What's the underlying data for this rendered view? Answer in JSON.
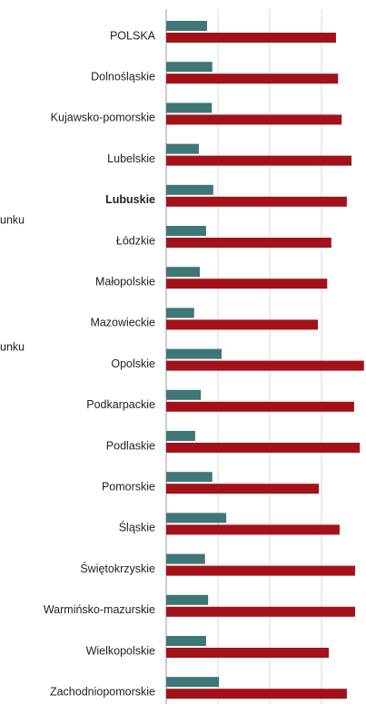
{
  "chart_data": {
    "type": "bar",
    "orientation": "horizontal",
    "categories": [
      "POLSKA",
      "Dolnośląskie",
      "Kujawsko-pomorskie",
      "Lubelskie",
      "Lubuskie",
      "Łódzkie",
      "Małopolskie",
      "Mazowieckie",
      "Opolskie",
      "Podkarpackie",
      "Podlaskie",
      "Pomorskie",
      "Śląskie",
      "Świętokrzyskie",
      "Warmińsko-mazurskie",
      "Wielkopolskie",
      "Zachodniopomorskie"
    ],
    "bold_category": 4,
    "series": [
      {
        "name": "unku",
        "color": "#3f7676",
        "values": [
          0.79,
          0.89,
          0.88,
          0.63,
          0.91,
          0.77,
          0.65,
          0.54,
          1.07,
          0.67,
          0.56,
          0.89,
          1.16,
          0.75,
          0.81,
          0.77,
          1.02
        ]
      },
      {
        "name": "unku",
        "color": "#a3121a",
        "values": [
          3.28,
          3.32,
          3.39,
          3.58,
          3.49,
          3.19,
          3.11,
          2.93,
          3.82,
          3.63,
          3.74,
          2.95,
          3.35,
          3.65,
          3.65,
          3.14,
          3.49
        ]
      }
    ],
    "xlim": [
      0,
      4
    ],
    "xticks": [
      1,
      2,
      3
    ],
    "grid": true
  }
}
